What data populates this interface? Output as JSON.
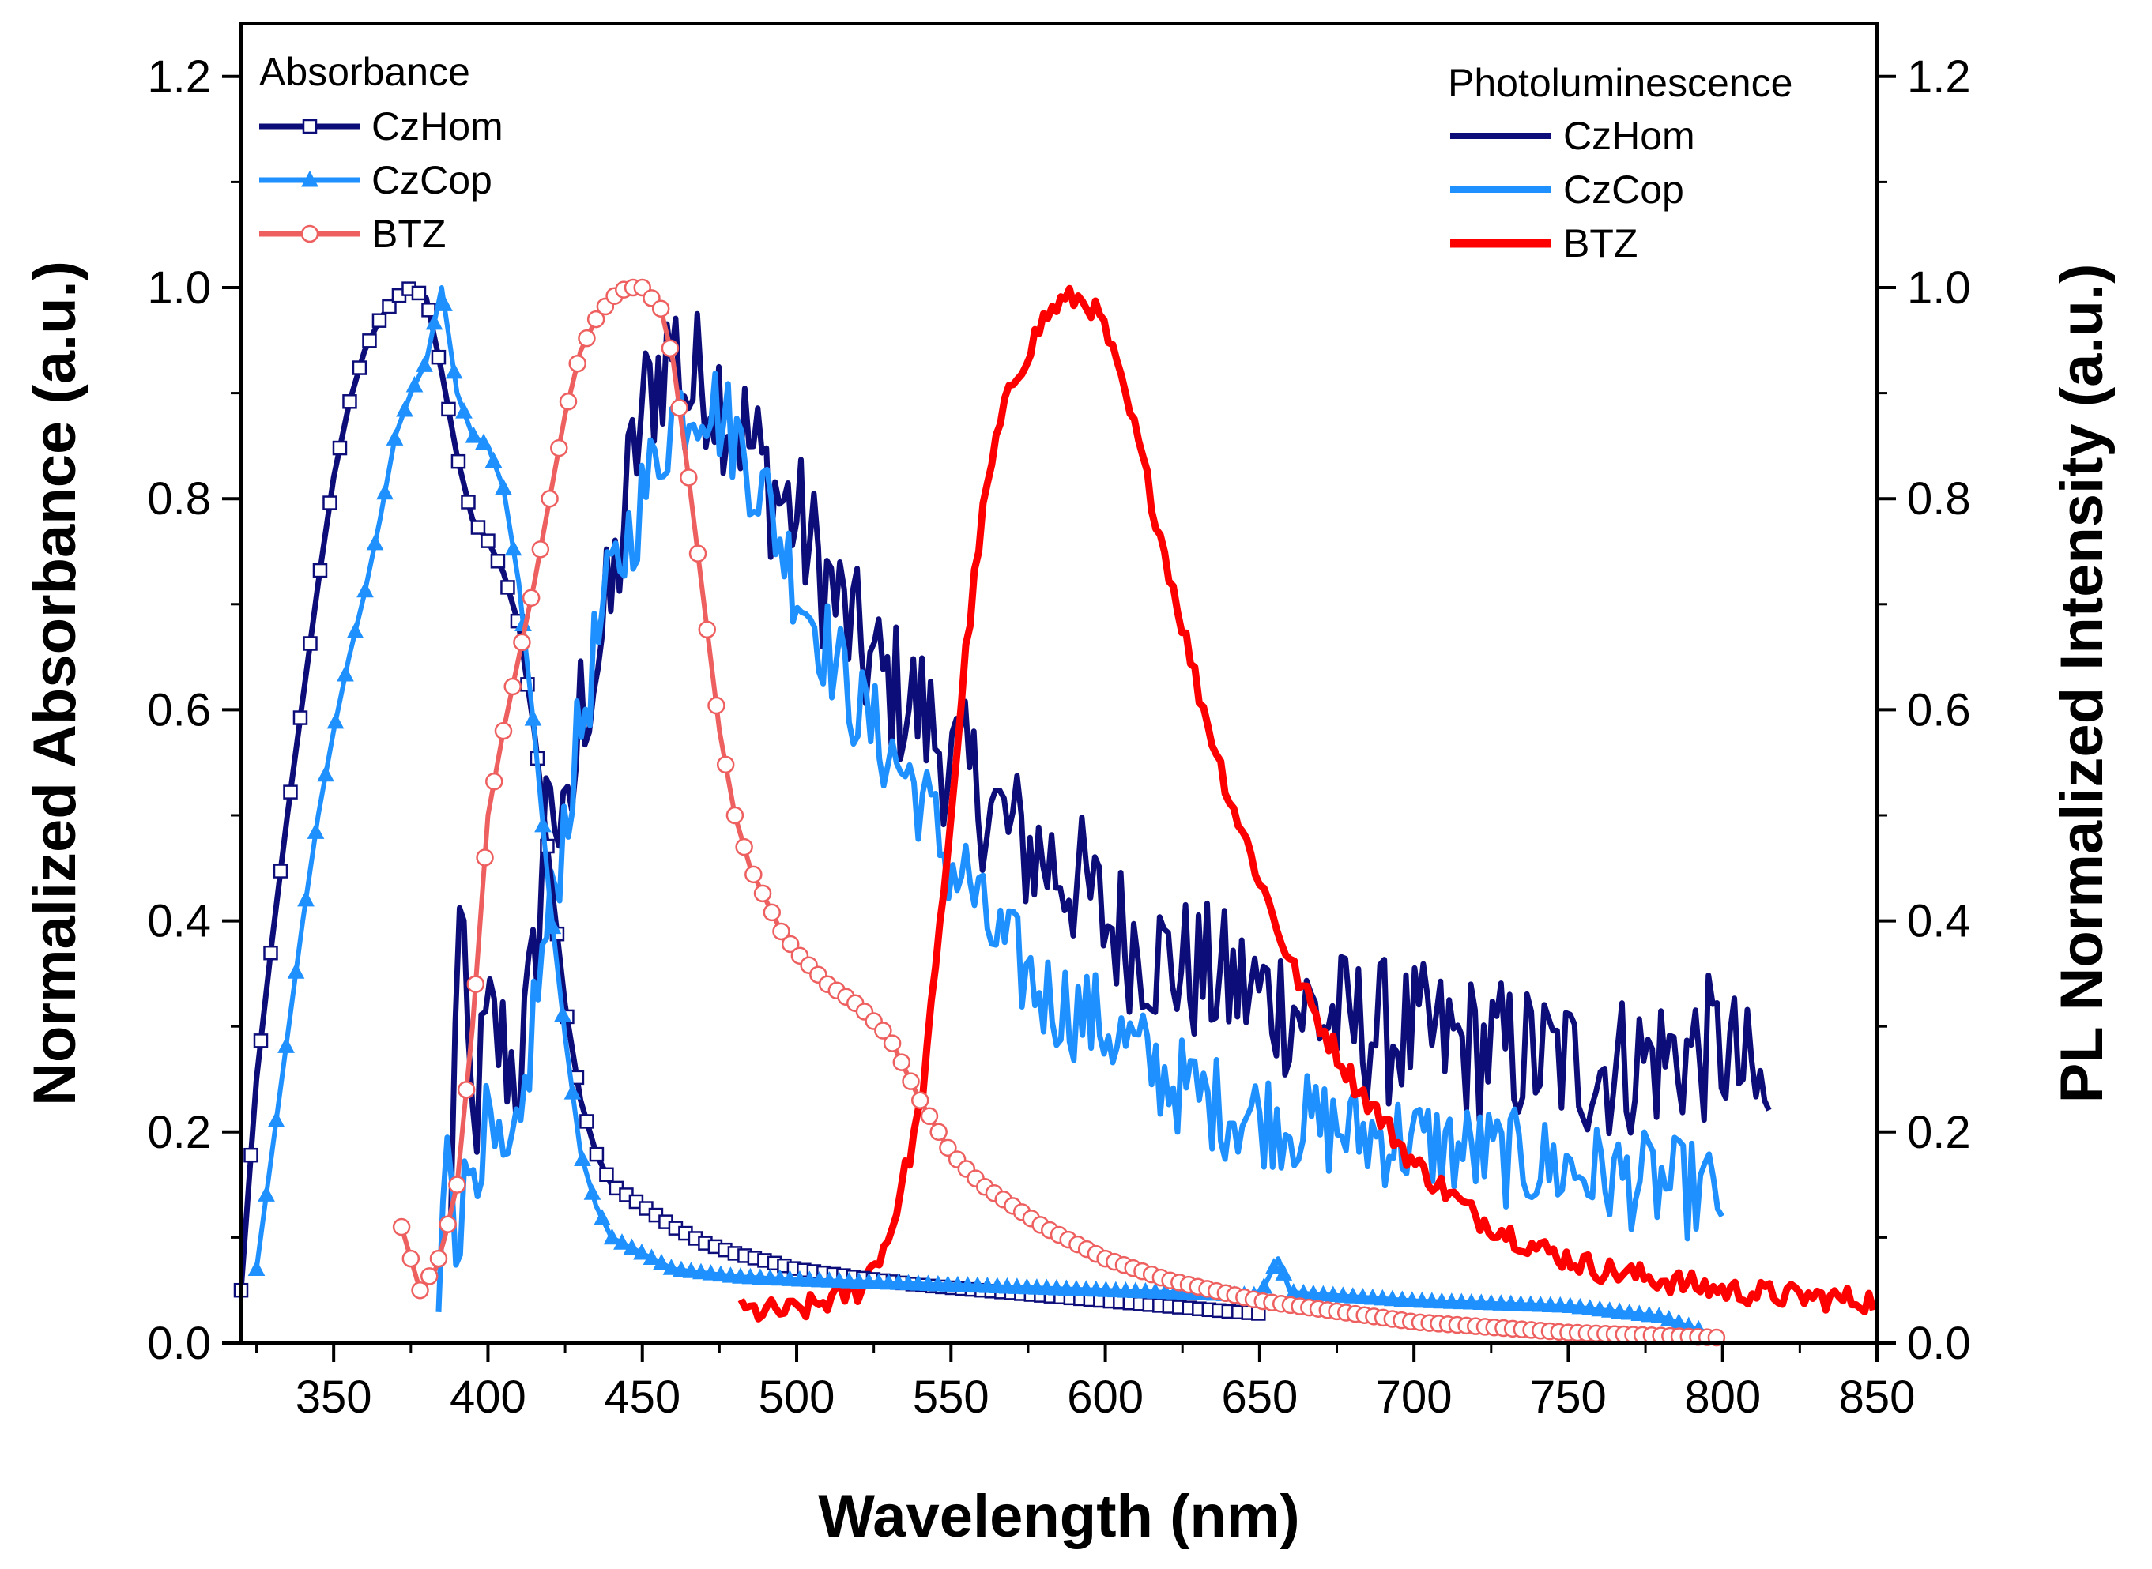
{
  "chart_data": {
    "type": "line",
    "x_axis": {
      "label": "Wavelength (nm)",
      "range": [
        320,
        850
      ],
      "ticks": [
        350,
        400,
        450,
        500,
        550,
        600,
        650,
        700,
        750,
        800,
        850
      ]
    },
    "y_left": {
      "label": "Normalized Absorbance (a.u.)",
      "range": [
        0,
        1.25
      ],
      "ticks": [
        "0.0",
        "0.2",
        "0.4",
        "0.6",
        "0.8",
        "1.0",
        "1.2"
      ]
    },
    "y_right": {
      "label": "PL Normalized Intensity (a.u.)",
      "range": [
        0,
        1.25
      ],
      "ticks": [
        "0.0",
        "0.2",
        "0.4",
        "0.6",
        "0.8",
        "1.0",
        "1.2"
      ]
    },
    "legend": {
      "absorbance_title": "Absorbance",
      "pl_title": "Photoluminescence",
      "absorbance_entries": [
        "CzHom",
        "CzCop",
        "BTZ"
      ],
      "pl_entries": [
        "CzHom",
        "CzCop",
        "BTZ"
      ]
    },
    "colors": {
      "czhom": "#0d0d7a",
      "czcop": "#1e90ff",
      "btz_abs": "#ee6060",
      "btz_pl": "#ff0000"
    },
    "series": [
      {
        "name": "CzHom",
        "kind": "absorbance",
        "marker": "square",
        "color": "#0d0d7a",
        "x": [
          320,
          325,
          330,
          335,
          340,
          345,
          350,
          355,
          360,
          365,
          370,
          375,
          380,
          385,
          390,
          395,
          400,
          405,
          410,
          415,
          420,
          425,
          430,
          435,
          440,
          450,
          460,
          470,
          480,
          490,
          500,
          520,
          540,
          560,
          580,
          600,
          620,
          640,
          650
        ],
        "y": [
          0.05,
          0.25,
          0.38,
          0.5,
          0.61,
          0.72,
          0.82,
          0.89,
          0.94,
          0.97,
          0.99,
          1.0,
          0.99,
          0.92,
          0.84,
          0.78,
          0.76,
          0.73,
          0.68,
          0.58,
          0.45,
          0.32,
          0.23,
          0.18,
          0.15,
          0.13,
          0.11,
          0.095,
          0.085,
          0.078,
          0.07,
          0.062,
          0.055,
          0.05,
          0.045,
          0.04,
          0.035,
          0.03,
          0.028
        ]
      },
      {
        "name": "CzCop",
        "kind": "absorbance",
        "marker": "triangle",
        "color": "#1e90ff",
        "x": [
          325,
          330,
          335,
          340,
          345,
          350,
          355,
          360,
          365,
          370,
          375,
          380,
          385,
          390,
          395,
          400,
          405,
          410,
          415,
          420,
          425,
          430,
          435,
          440,
          450,
          460,
          480,
          500,
          550,
          600,
          650,
          656,
          660,
          700,
          750,
          780,
          795
        ],
        "y": [
          0.07,
          0.18,
          0.29,
          0.4,
          0.5,
          0.58,
          0.65,
          0.71,
          0.78,
          0.86,
          0.9,
          0.93,
          1.0,
          0.9,
          0.86,
          0.85,
          0.81,
          0.72,
          0.58,
          0.42,
          0.29,
          0.18,
          0.13,
          0.1,
          0.085,
          0.07,
          0.063,
          0.06,
          0.055,
          0.05,
          0.045,
          0.08,
          0.048,
          0.04,
          0.035,
          0.025,
          0.01
        ]
      },
      {
        "name": "BTZ",
        "kind": "absorbance",
        "marker": "circle",
        "color": "#ee6060",
        "x": [
          372,
          375,
          378,
          380,
          383,
          386,
          390,
          395,
          400,
          405,
          410,
          415,
          420,
          425,
          430,
          435,
          440,
          445,
          450,
          453,
          456,
          460,
          465,
          470,
          475,
          480,
          485,
          490,
          495,
          500,
          510,
          520,
          530,
          540,
          550,
          560,
          570,
          580,
          600,
          620,
          650,
          700,
          750,
          800
        ],
        "y": [
          0.11,
          0.08,
          0.05,
          0.06,
          0.07,
          0.1,
          0.15,
          0.3,
          0.5,
          0.58,
          0.65,
          0.72,
          0.8,
          0.88,
          0.94,
          0.97,
          0.99,
          1.0,
          1.0,
          0.99,
          0.98,
          0.93,
          0.82,
          0.7,
          0.58,
          0.5,
          0.45,
          0.42,
          0.39,
          0.37,
          0.34,
          0.32,
          0.29,
          0.23,
          0.18,
          0.15,
          0.13,
          0.11,
          0.08,
          0.06,
          0.04,
          0.02,
          0.01,
          0.005
        ]
      },
      {
        "name": "CzHom",
        "kind": "pl",
        "marker": "none",
        "color": "#0d0d7a",
        "x": [
          388,
          390,
          395,
          400,
          405,
          410,
          415,
          420,
          425,
          430,
          435,
          440,
          445,
          450,
          455,
          460,
          465,
          470,
          475,
          480,
          490,
          500,
          510,
          520,
          530,
          540,
          550,
          560,
          570,
          580,
          590,
          600,
          620,
          640,
          660,
          680,
          700,
          720,
          740,
          760,
          780,
          800,
          815
        ],
        "y": [
          0.1,
          0.43,
          0.2,
          0.3,
          0.28,
          0.25,
          0.35,
          0.55,
          0.45,
          0.6,
          0.65,
          0.7,
          0.8,
          0.88,
          0.92,
          0.95,
          0.9,
          0.92,
          0.9,
          0.88,
          0.82,
          0.78,
          0.72,
          0.66,
          0.62,
          0.6,
          0.55,
          0.52,
          0.48,
          0.46,
          0.44,
          0.4,
          0.36,
          0.34,
          0.32,
          0.3,
          0.29,
          0.28,
          0.27,
          0.26,
          0.27,
          0.28,
          0.22
        ]
      },
      {
        "name": "CzCop",
        "kind": "pl",
        "marker": "none",
        "color": "#1e90ff",
        "x": [
          384,
          387,
          390,
          395,
          400,
          405,
          410,
          415,
          420,
          425,
          430,
          435,
          440,
          450,
          460,
          470,
          480,
          490,
          500,
          520,
          540,
          550,
          556,
          560,
          580,
          600,
          620,
          640,
          660,
          680,
          700,
          720,
          740,
          760,
          780,
          800
        ],
        "y": [
          0.01,
          0.23,
          0.1,
          0.18,
          0.2,
          0.15,
          0.18,
          0.32,
          0.4,
          0.5,
          0.58,
          0.66,
          0.72,
          0.8,
          0.88,
          0.9,
          0.86,
          0.8,
          0.72,
          0.6,
          0.52,
          0.45,
          0.44,
          0.4,
          0.33,
          0.3,
          0.25,
          0.22,
          0.21,
          0.2,
          0.19,
          0.18,
          0.17,
          0.16,
          0.15,
          0.14
        ]
      },
      {
        "name": "BTZ",
        "kind": "pl",
        "marker": "none",
        "color": "#ff0000",
        "x": [
          482,
          500,
          520,
          530,
          540,
          545,
          550,
          555,
          560,
          565,
          570,
          575,
          580,
          585,
          590,
          595,
          600,
          610,
          620,
          630,
          640,
          650,
          660,
          670,
          680,
          700,
          720,
          740,
          760,
          780,
          800,
          820,
          850
        ],
        "y": [
          0.03,
          0.03,
          0.05,
          0.1,
          0.22,
          0.35,
          0.5,
          0.66,
          0.78,
          0.86,
          0.91,
          0.94,
          0.97,
          0.985,
          0.99,
          0.985,
          0.96,
          0.86,
          0.74,
          0.62,
          0.52,
          0.44,
          0.36,
          0.3,
          0.25,
          0.17,
          0.12,
          0.09,
          0.07,
          0.06,
          0.05,
          0.045,
          0.04
        ]
      }
    ]
  }
}
